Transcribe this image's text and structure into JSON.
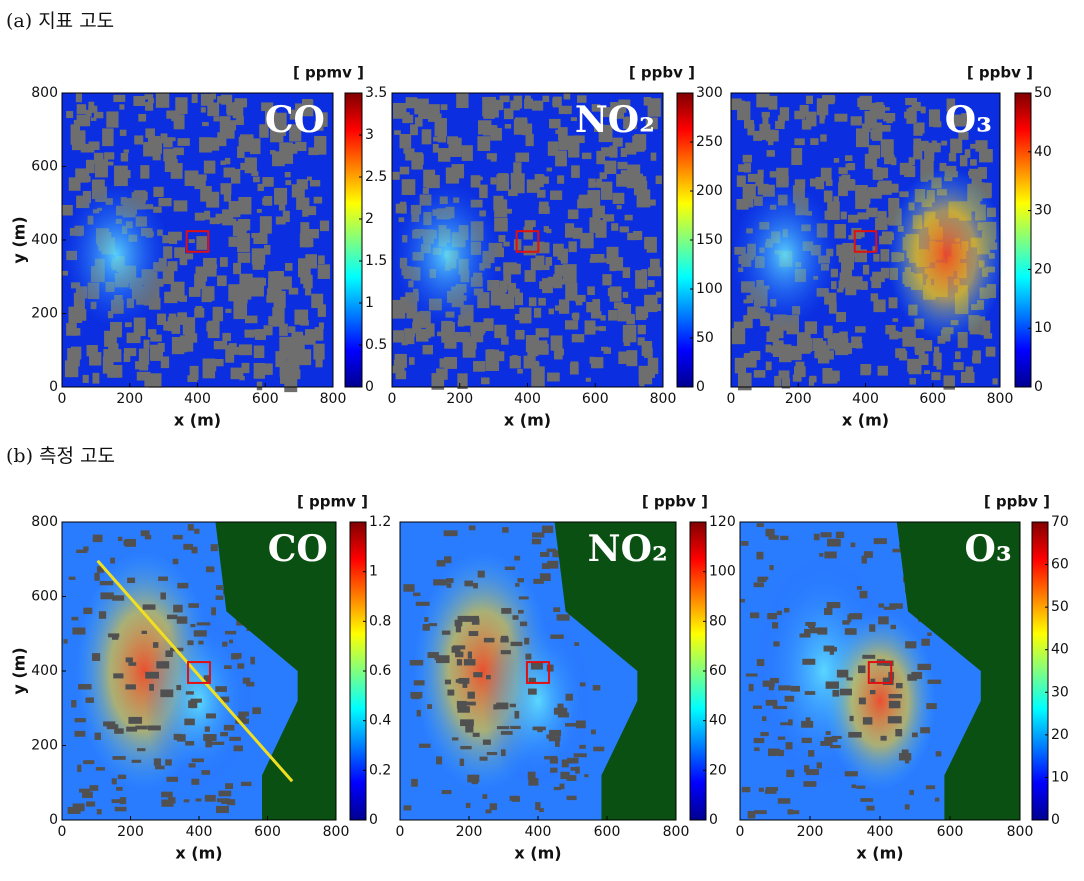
{
  "sections": [
    {
      "label": "(a) 지표 고도"
    },
    {
      "label": "(b) 측정 고도"
    }
  ],
  "chart_data": [
    {
      "type": "heatmap",
      "species": "CO",
      "unit": "[ ppmv ]",
      "xlabel": "x (m)",
      "ylabel": "y (m)",
      "xlim": [
        0,
        800
      ],
      "xticks": [
        0,
        200,
        400,
        600,
        800
      ],
      "ylim": [
        0,
        800
      ],
      "yticks": [
        0,
        200,
        400,
        600,
        800
      ],
      "clim": [
        0,
        3.5
      ],
      "cticks": [
        0,
        0.5,
        1,
        1.5,
        2,
        2.5,
        3,
        3.5
      ]
    },
    {
      "type": "heatmap",
      "species": "NO₂",
      "unit": "[ ppbv ]",
      "xlabel": "x (m)",
      "xlim": [
        0,
        800
      ],
      "xticks": [
        0,
        200,
        400,
        600,
        800
      ],
      "clim": [
        0,
        300
      ],
      "cticks": [
        0,
        50,
        100,
        150,
        200,
        250,
        300
      ]
    },
    {
      "type": "heatmap",
      "species": "O₃",
      "unit": "[ ppbv ]",
      "xlabel": "x (m)",
      "xlim": [
        0,
        800
      ],
      "xticks": [
        0,
        200,
        400,
        600,
        800
      ],
      "clim": [
        0,
        50
      ],
      "cticks": [
        0,
        10,
        20,
        30,
        40,
        50
      ]
    },
    {
      "type": "heatmap",
      "species": "CO",
      "unit": "[ ppmv ]",
      "xlabel": "x (m)",
      "ylabel": "y (m)",
      "xlim": [
        0,
        800
      ],
      "xticks": [
        0,
        200,
        400,
        600,
        800
      ],
      "ylim": [
        0,
        800
      ],
      "yticks": [
        0,
        200,
        400,
        600,
        800
      ],
      "clim": [
        0,
        1.2
      ],
      "cticks": [
        0,
        0.2,
        0.4,
        0.6,
        0.8,
        1,
        1.2
      ]
    },
    {
      "type": "heatmap",
      "species": "NO₂",
      "unit": "[ ppbv ]",
      "xlabel": "x (m)",
      "xlim": [
        0,
        800
      ],
      "xticks": [
        0,
        200,
        400,
        600,
        800
      ],
      "clim": [
        0,
        120
      ],
      "cticks": [
        0,
        20,
        40,
        60,
        80,
        100,
        120
      ]
    },
    {
      "type": "heatmap",
      "species": "O₃",
      "unit": "[ ppbv ]",
      "xlabel": "x (m)",
      "xlim": [
        0,
        800
      ],
      "xticks": [
        0,
        200,
        400,
        600,
        800
      ],
      "clim": [
        0,
        70
      ],
      "cticks": [
        0,
        10,
        20,
        30,
        40,
        50,
        60,
        70
      ]
    }
  ]
}
